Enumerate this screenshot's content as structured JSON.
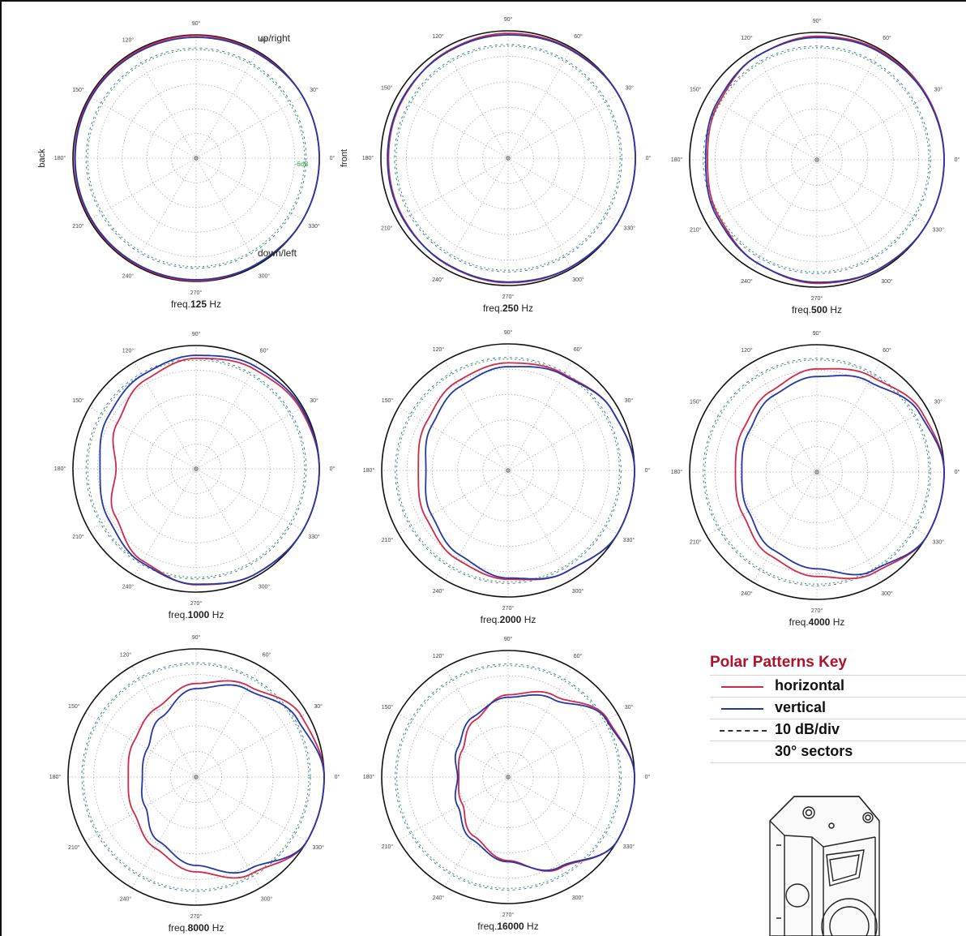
{
  "colors": {
    "horizontal": "#d2294a",
    "vertical": "#2338a8",
    "key_title": "#b0112d"
  },
  "labels": {
    "back": "back",
    "front": "front",
    "up_right": "up/right",
    "down_left": "down/left",
    "minus6": "-6dB",
    "deg": [
      "0°",
      "30°",
      "60°",
      "90°",
      "120°",
      "150°",
      "180°",
      "210°",
      "240°",
      "270°",
      "300°",
      "330°"
    ]
  },
  "key": {
    "title": "Polar Patterns Key",
    "horizontal": "horizontal",
    "vertical": "vertical",
    "scale": "10 dB/div",
    "sectors": "30° sectors"
  },
  "chart_data": [
    {
      "type": "polar",
      "freq_prefix": "freq.",
      "freq": "125",
      "unit": "Hz",
      "angles": [
        0,
        30,
        60,
        90,
        120,
        150,
        180,
        210,
        240,
        270,
        300,
        330
      ],
      "series": [
        {
          "name": "horizontal",
          "values": [
            0,
            0,
            -0.5,
            -0.3,
            -0.5,
            -0.5,
            -0.7,
            -0.5,
            -0.5,
            -0.3,
            -0.5,
            0
          ]
        },
        {
          "name": "vertical",
          "values": [
            0,
            0,
            -0.8,
            -1.0,
            -1.0,
            -0.8,
            -0.9,
            -0.8,
            -0.8,
            -0.7,
            -0.5,
            0
          ]
        }
      ]
    },
    {
      "type": "polar",
      "freq_prefix": "freq.",
      "freq": "250",
      "unit": "Hz",
      "angles": [
        0,
        30,
        60,
        90,
        120,
        150,
        180,
        210,
        240,
        270,
        300,
        330
      ],
      "series": [
        {
          "name": "horizontal",
          "values": [
            0,
            0,
            -0.6,
            -1.0,
            -1.7,
            -2.6,
            -3.0,
            -2.6,
            -1.8,
            -1.1,
            -0.6,
            0
          ]
        },
        {
          "name": "vertical",
          "values": [
            0,
            0,
            -0.9,
            -1.6,
            -2.0,
            -2.3,
            -2.6,
            -2.3,
            -2.0,
            -1.4,
            -0.7,
            0
          ]
        }
      ]
    },
    {
      "type": "polar",
      "freq_prefix": "freq.",
      "freq": "500",
      "unit": "Hz",
      "angles": [
        0,
        30,
        60,
        90,
        120,
        150,
        180,
        210,
        240,
        270,
        300,
        330
      ],
      "series": [
        {
          "name": "horizontal",
          "values": [
            0,
            0,
            -0.6,
            -1.5,
            -3.0,
            -5.5,
            -7.0,
            -5.5,
            -3.2,
            -1.5,
            -0.6,
            0
          ]
        },
        {
          "name": "vertical",
          "values": [
            0,
            -0.3,
            -1.1,
            -2.0,
            -3.0,
            -4.8,
            -6.3,
            -4.8,
            -3.2,
            -1.9,
            -0.7,
            0
          ]
        }
      ]
    },
    {
      "type": "polar",
      "freq_prefix": "freq.",
      "freq": "1000",
      "unit": "Hz",
      "angles": [
        0,
        30,
        60,
        90,
        120,
        150,
        180,
        210,
        240,
        270,
        300,
        330
      ],
      "series": [
        {
          "name": "horizontal",
          "values": [
            0,
            -1.2,
            -3.2,
            -5.2,
            -8.5,
            -13.0,
            -17.5,
            -12.0,
            -6.8,
            -3.0,
            -1.0,
            0
          ]
        },
        {
          "name": "vertical",
          "values": [
            0,
            -0.6,
            -2.0,
            -4.0,
            -6.2,
            -8.5,
            -11.0,
            -9.0,
            -6.0,
            -3.2,
            -1.0,
            0
          ]
        }
      ]
    },
    {
      "type": "polar",
      "freq_prefix": "freq.",
      "freq": "2000",
      "unit": "Hz",
      "angles": [
        0,
        30,
        60,
        90,
        120,
        150,
        180,
        210,
        240,
        270,
        300,
        330
      ],
      "series": [
        {
          "name": "horizontal",
          "values": [
            0,
            -2.5,
            -6.0,
            -7.5,
            -9.5,
            -12.5,
            -14.5,
            -12.5,
            -9.5,
            -7.0,
            -3.8,
            0
          ]
        },
        {
          "name": "vertical",
          "values": [
            0,
            -2.5,
            -6.5,
            -9.0,
            -11.8,
            -15.0,
            -17.5,
            -15.0,
            -11.5,
            -7.5,
            -3.8,
            0
          ]
        }
      ]
    },
    {
      "type": "polar",
      "freq_prefix": "freq.",
      "freq": "4000",
      "unit": "Hz",
      "angles": [
        0,
        30,
        60,
        90,
        120,
        150,
        180,
        210,
        240,
        270,
        300,
        330
      ],
      "series": [
        {
          "name": "horizontal",
          "values": [
            0,
            -2.5,
            -6.8,
            -9.5,
            -13.5,
            -16.5,
            -18.0,
            -16.5,
            -12.5,
            -9.0,
            -4.5,
            0
          ]
        },
        {
          "name": "vertical",
          "values": [
            0,
            -3.5,
            -9.0,
            -12.5,
            -15.5,
            -19.0,
            -20.5,
            -19.0,
            -15.0,
            -12.0,
            -5.5,
            0
          ]
        }
      ]
    },
    {
      "type": "polar",
      "freq_prefix": "freq.",
      "freq": "8000",
      "unit": "Hz",
      "angles": [
        0,
        30,
        60,
        90,
        120,
        150,
        180,
        210,
        240,
        270,
        300,
        330
      ],
      "series": [
        {
          "name": "horizontal",
          "values": [
            0,
            -2.5,
            -9.0,
            -13.5,
            -19.0,
            -22.0,
            -23.5,
            -22.0,
            -18.0,
            -13.0,
            -6.5,
            0
          ]
        },
        {
          "name": "vertical",
          "values": [
            0,
            -4.5,
            -10.5,
            -15.5,
            -23.0,
            -28.0,
            -29.0,
            -27.0,
            -21.0,
            -15.5,
            -8.5,
            0
          ]
        }
      ]
    },
    {
      "type": "polar",
      "freq_prefix": "freq.",
      "freq": "16000",
      "unit": "Hz",
      "angles": [
        0,
        30,
        60,
        90,
        120,
        150,
        180,
        210,
        240,
        270,
        300,
        330
      ],
      "series": [
        {
          "name": "horizontal",
          "values": [
            0,
            -4.5,
            -13.0,
            -17.5,
            -24.0,
            -29.0,
            -30.5,
            -29.0,
            -23.0,
            -17.0,
            -8.5,
            0
          ]
        },
        {
          "name": "vertical",
          "values": [
            0,
            -5.0,
            -14.5,
            -18.5,
            -22.5,
            -27.0,
            -30.0,
            -27.0,
            -21.5,
            -16.5,
            -9.0,
            0
          ]
        }
      ]
    }
  ]
}
